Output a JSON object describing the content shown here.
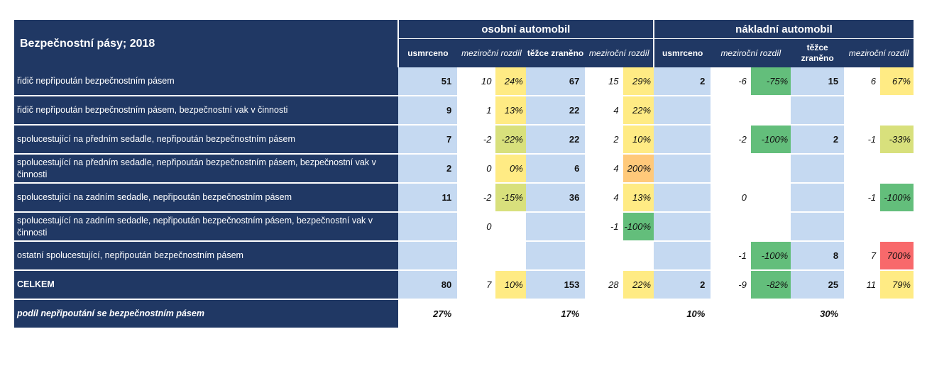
{
  "title": "Bezpečnostní pásy; 2018",
  "groups": [
    "osobní automobil",
    "nákladní automobil"
  ],
  "subheaders": [
    "usmrceno",
    "meziroční rozdíl",
    "těžce zraněno",
    "meziroční rozdíl",
    "usmrceno",
    "meziroční rozdíl",
    "těžce zraněno",
    "meziroční rozdíl"
  ],
  "colors": {
    "header_bg": "#203864",
    "value_bg": "#c5d9f1",
    "yellow": "#ffeb84",
    "yellow_green": "#d8e07c",
    "green": "#63be7b",
    "orange": "#ffc97a",
    "red": "#f8696b"
  },
  "rows": [
    {
      "label": "řidič nepřipoután bezpečnostním pásem",
      "cells": [
        "51",
        "10",
        "24%",
        "67",
        "15",
        "29%",
        "2",
        "-6",
        "-75%",
        "15",
        "6",
        "67%"
      ],
      "fills": [
        "yellow",
        "yellow",
        "green",
        "yellow"
      ]
    },
    {
      "label": "řidič nepřipoután bezpečnostním pásem, bezpečnostní vak v činnosti",
      "cells": [
        "9",
        "1",
        "13%",
        "22",
        "4",
        "22%",
        "",
        "",
        "",
        "",
        "",
        ""
      ],
      "fills": [
        "yellow",
        "yellow",
        "",
        ""
      ]
    },
    {
      "label": "spolucestující na předním sedadle, nepřipoután bezpečnostním pásem",
      "cells": [
        "7",
        "-2",
        "-22%",
        "22",
        "2",
        "10%",
        "",
        "-2",
        "-100%",
        "2",
        "-1",
        "-33%"
      ],
      "fills": [
        "yellow_green",
        "yellow",
        "green",
        "yellow_green"
      ]
    },
    {
      "label": "spolucestující na předním sedadle, nepřipoután bezpečnostním pásem, bezpečnostní vak v činnosti",
      "cells": [
        "2",
        "0",
        "0%",
        "6",
        "4",
        "200%",
        "",
        "",
        "",
        "",
        "",
        ""
      ],
      "fills": [
        "yellow",
        "orange",
        "",
        ""
      ]
    },
    {
      "label": "spolucestující na zadním sedadle, nepřipoután bezpečnostním pásem",
      "cells": [
        "11",
        "-2",
        "-15%",
        "36",
        "4",
        "13%",
        "",
        "0",
        "",
        "",
        "-1",
        "-100%"
      ],
      "fills": [
        "yellow_green",
        "yellow",
        "",
        "green"
      ]
    },
    {
      "label": "spolucestující na zadním sedadle, nepřipoután bezpečnostním pásem, bezpečnostní vak v činnosti",
      "cells": [
        "",
        "0",
        "",
        "",
        "-1",
        "-100%",
        "",
        "",
        "",
        "",
        "",
        ""
      ],
      "fills": [
        "",
        "green",
        "",
        ""
      ]
    },
    {
      "label": "ostatní spolucestující, nepřipoután bezpečnostním pásem",
      "cells": [
        "",
        "",
        "",
        "",
        "",
        "",
        "",
        "-1",
        "-100%",
        "8",
        "7",
        "700%"
      ],
      "fills": [
        "",
        "",
        "green",
        "red"
      ]
    },
    {
      "label": "CELKEM",
      "cells": [
        "80",
        "7",
        "10%",
        "153",
        "28",
        "22%",
        "2",
        "-9",
        "-82%",
        "25",
        "11",
        "79%"
      ],
      "fills": [
        "yellow",
        "yellow",
        "green",
        "yellow"
      ]
    }
  ],
  "share_row": {
    "label": "podíl nepřipoutání se bezpečnostním pásem",
    "cells": [
      "27%",
      "17%",
      "10%",
      "30%"
    ]
  }
}
